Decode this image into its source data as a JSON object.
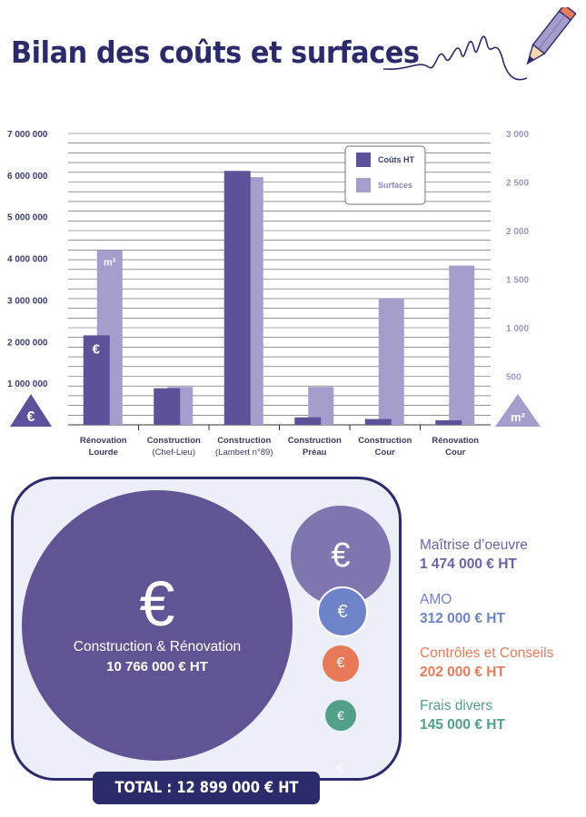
{
  "title": "Bilan des coûts et surfaces",
  "chart_data": {
    "type": "bar",
    "categories": [
      {
        "line1": "Rénovation",
        "line2": "Lourde",
        "line2_bold": true
      },
      {
        "line1": "Construction",
        "line2": "(Chef-Lieu)",
        "line2_bold": false
      },
      {
        "line1": "Construction",
        "line2": "(Lambert n°89)",
        "line2_bold": false
      },
      {
        "line1": "Construction",
        "line2": "Préau",
        "line2_bold": true
      },
      {
        "line1": "Construction",
        "line2": "Cour",
        "line2_bold": true
      },
      {
        "line1": "Rénovation",
        "line2": "Cour",
        "line2_bold": true
      }
    ],
    "series": [
      {
        "name": "Coûts HT",
        "axis": "left",
        "color": "#5e519a",
        "values": [
          2150000,
          880000,
          6100000,
          180000,
          140000,
          110000
        ]
      },
      {
        "name": "Surfaces",
        "axis": "right",
        "color": "#a59dcc",
        "values": [
          1800,
          390,
          2550,
          390,
          1300,
          1640
        ]
      }
    ],
    "y_left": {
      "min": 0,
      "max": 7000000,
      "ticks": [
        1000000,
        2000000,
        3000000,
        4000000,
        5000000,
        6000000,
        7000000
      ],
      "tick_labels": [
        "1 000 000",
        "2 000 000",
        "3 000 000",
        "4 000 000",
        "5 000 000",
        "6 000 000",
        "7 000 000"
      ]
    },
    "y_right": {
      "min": 0,
      "max": 3000,
      "ticks": [
        500,
        1000,
        1500,
        2000,
        2500,
        3000
      ],
      "tick_labels": [
        "500",
        "1 000",
        "1 500",
        "2 000",
        "2 500",
        "3 000"
      ]
    },
    "bar_labels": {
      "cost_marker": "€",
      "surface_marker": "m²"
    },
    "axis_badges": {
      "left": "€",
      "right": "m²"
    },
    "legend_position": "top-right",
    "grid": true
  },
  "colors": {
    "navy": "#2b2a6b",
    "purple": "#625395",
    "lavender": "#a59dcc",
    "panel": "#eceef8"
  },
  "breakdown": {
    "main": {
      "icon": "€",
      "label": "Construction & Rénovation",
      "value": "10 766 000 € HT"
    },
    "items": [
      {
        "icon": "€",
        "label": "Maîtrise d’oeuvre",
        "value": "1 474 000 € HT",
        "color": "#6f5fa6",
        "circle": "#7f76b0"
      },
      {
        "icon": "€",
        "label": "AMO",
        "value": "312 000 € HT",
        "color": "#6f84c8",
        "circle": "#6f84c8"
      },
      {
        "icon": "€",
        "label": "Contrôles et Conseils",
        "value": "202 000 € HT",
        "color": "#e87a5a",
        "circle": "#e87a5a"
      },
      {
        "icon": "€",
        "label": "Frais divers",
        "value": "145 000 € HT",
        "color": "#52a08a",
        "circle": "#52a08a"
      }
    ],
    "tiny_icon": "€",
    "total": "TOTAL : 12 899 000 € HT"
  }
}
